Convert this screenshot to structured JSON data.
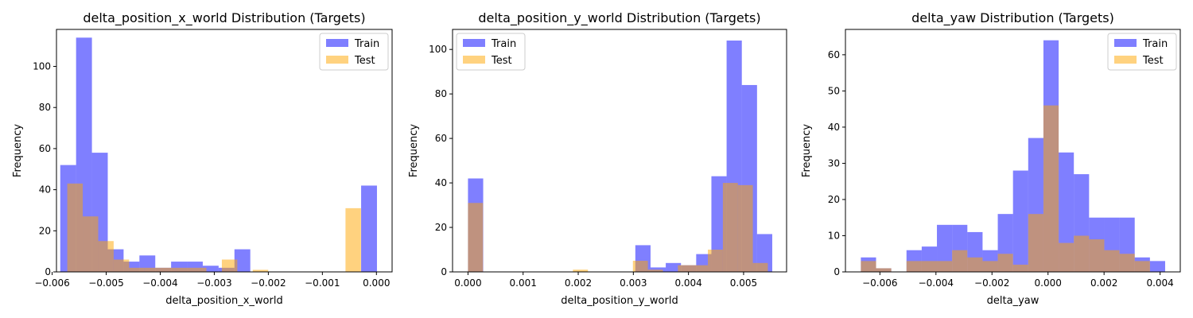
{
  "colors": {
    "train": "#0000ff",
    "test": "#ffa500"
  },
  "chart_data": [
    {
      "type": "histogram",
      "title": "delta_position_x_world Distribution (Targets)",
      "xlabel": "delta_position_x_world",
      "ylabel": "Frequency",
      "xlim": [
        -0.00592,
        0.00029
      ],
      "ylim": [
        0,
        118
      ],
      "xticks": [
        -0.006,
        -0.005,
        -0.004,
        -0.003,
        -0.002,
        -0.001,
        0.0
      ],
      "xtick_labels": [
        "−0.006",
        "−0.005",
        "−0.004",
        "−0.003",
        "−0.002",
        "−0.001",
        "0.000"
      ],
      "yticks": [
        0,
        20,
        40,
        60,
        80,
        100
      ],
      "legend_position": "top-right",
      "series": [
        {
          "name": "Train",
          "bin_start": -0.00585,
          "bin_width": 0.000293,
          "values": [
            52,
            114,
            58,
            11,
            5,
            8,
            2,
            5,
            5,
            3,
            2,
            11,
            0,
            0,
            0,
            0,
            0,
            0,
            0,
            42
          ]
        },
        {
          "name": "Test",
          "bin_start": -0.00572,
          "bin_width": 0.000286,
          "values": [
            43,
            27,
            15,
            6,
            2,
            2,
            2,
            2,
            2,
            0,
            6,
            0,
            1,
            0,
            0,
            0,
            0,
            0,
            31
          ]
        }
      ]
    },
    {
      "type": "histogram",
      "title": "delta_position_y_world Distribution (Targets)",
      "xlabel": "delta_position_y_world",
      "ylabel": "Frequency",
      "xlim": [
        -0.00028,
        0.00578
      ],
      "ylim": [
        0,
        109
      ],
      "xticks": [
        0.0,
        0.001,
        0.002,
        0.003,
        0.004,
        0.005
      ],
      "xtick_labels": [
        "0.000",
        "0.001",
        "0.002",
        "0.003",
        "0.004",
        "0.005"
      ],
      "yticks": [
        0,
        20,
        40,
        60,
        80,
        100
      ],
      "legend_position": "top-left",
      "series": [
        {
          "name": "Train",
          "bin_start": 0.0,
          "bin_width": 0.000276,
          "values": [
            42,
            0,
            0,
            0,
            0,
            0,
            0,
            0,
            0,
            0,
            0,
            12,
            2,
            4,
            3,
            8,
            43,
            104,
            84,
            17
          ]
        },
        {
          "name": "Test",
          "bin_start": 0.0,
          "bin_width": 0.000272,
          "values": [
            31,
            0,
            0,
            0,
            0,
            0,
            0,
            1,
            0,
            0,
            0,
            5,
            1,
            0,
            3,
            3,
            10,
            40,
            39,
            4
          ]
        }
      ]
    },
    {
      "type": "histogram",
      "title": "delta_yaw Distribution (Targets)",
      "xlabel": "delta_yaw",
      "ylabel": "Frequency",
      "xlim": [
        -0.00723,
        0.00472
      ],
      "ylim": [
        0,
        67
      ],
      "xticks": [
        -0.006,
        -0.004,
        -0.002,
        0.0,
        0.002,
        0.004
      ],
      "xtick_labels": [
        "−0.006",
        "−0.004",
        "−0.002",
        "0.000",
        "0.002",
        "0.004"
      ],
      "yticks": [
        0,
        10,
        20,
        30,
        40,
        50,
        60
      ],
      "legend_position": "top-right",
      "series": [
        {
          "name": "Train",
          "bin_start": -0.00668,
          "bin_width": 0.000543,
          "values": [
            4,
            1,
            0,
            6,
            7,
            13,
            13,
            11,
            6,
            16,
            28,
            37,
            64,
            33,
            27,
            15,
            15,
            15,
            4,
            3
          ]
        },
        {
          "name": "Test",
          "bin_start": -0.00668,
          "bin_width": 0.000543,
          "values": [
            3,
            1,
            0,
            3,
            3,
            3,
            6,
            4,
            3,
            5,
            2,
            16,
            46,
            8,
            10,
            9,
            6,
            5,
            3,
            0
          ]
        }
      ]
    }
  ]
}
